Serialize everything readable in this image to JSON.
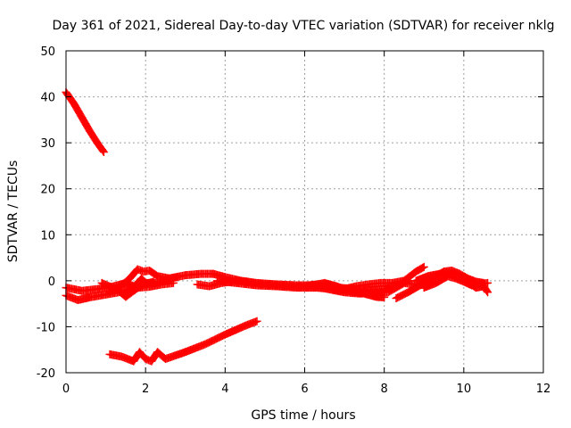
{
  "chart_data": {
    "type": "scatter",
    "title": "Day 361 of 2021, Sidereal Day-to-day VTEC variation (SDTVAR) for receiver nklg",
    "xlabel": "GPS time / hours",
    "ylabel": "SDTVAR / TECUs",
    "xlim": [
      0,
      12
    ],
    "ylim": [
      -20,
      50
    ],
    "x_ticks": [
      0,
      2,
      4,
      6,
      8,
      10,
      12
    ],
    "y_ticks": [
      -20,
      -10,
      0,
      10,
      20,
      30,
      40,
      50
    ],
    "x_tick_labels": [
      "0",
      "2",
      "4",
      "6",
      "8",
      "10",
      "12"
    ],
    "y_tick_labels": [
      "-20",
      "-10",
      "0",
      "10",
      "20",
      "30",
      "40",
      "50"
    ],
    "grid": true,
    "marker": "plus",
    "color": "#ff0000",
    "series": [
      {
        "name": "arc-1",
        "points": [
          [
            0.0,
            41.0
          ],
          [
            0.2,
            38.5
          ],
          [
            0.4,
            35.5
          ],
          [
            0.6,
            32.5
          ],
          [
            0.8,
            29.8
          ],
          [
            0.95,
            28.0
          ]
        ]
      },
      {
        "name": "arc-2",
        "points": [
          [
            0.0,
            -3.2
          ],
          [
            0.3,
            -4.2
          ],
          [
            0.6,
            -3.6
          ],
          [
            1.0,
            -3.0
          ],
          [
            1.4,
            -2.4
          ],
          [
            1.7,
            -1.5
          ],
          [
            1.9,
            0.5
          ],
          [
            2.0,
            -0.5
          ],
          [
            2.3,
            -0.5
          ],
          [
            2.6,
            0.5
          ],
          [
            3.0,
            1.2
          ],
          [
            3.4,
            1.5
          ],
          [
            3.7,
            1.5
          ]
        ]
      },
      {
        "name": "arc-3",
        "points": [
          [
            0.0,
            -1.5
          ],
          [
            0.4,
            -2.2
          ],
          [
            0.8,
            -1.8
          ],
          [
            1.2,
            -1.2
          ],
          [
            1.5,
            -0.5
          ],
          [
            1.8,
            -1.5
          ],
          [
            2.1,
            -1.3
          ],
          [
            2.4,
            -0.8
          ],
          [
            2.7,
            -0.5
          ]
        ]
      },
      {
        "name": "arc-4",
        "points": [
          [
            1.1,
            -2.5
          ],
          [
            1.4,
            -1.0
          ],
          [
            1.6,
            0.5
          ],
          [
            1.8,
            2.5
          ],
          [
            1.95,
            2.0
          ],
          [
            2.1,
            2.2
          ],
          [
            2.3,
            1.0
          ],
          [
            2.6,
            0.5
          ],
          [
            2.8,
            0.8
          ]
        ]
      },
      {
        "name": "arc-5",
        "points": [
          [
            0.9,
            -0.5
          ],
          [
            1.3,
            -2.0
          ],
          [
            1.5,
            -3.5
          ],
          [
            1.7,
            -2.2
          ],
          [
            1.9,
            -1.0
          ],
          [
            2.2,
            -0.2
          ]
        ]
      },
      {
        "name": "arc-6",
        "points": [
          [
            1.1,
            -16.0
          ],
          [
            1.4,
            -16.5
          ],
          [
            1.7,
            -17.5
          ],
          [
            1.85,
            -15.5
          ],
          [
            2.0,
            -17.0
          ],
          [
            2.15,
            -17.5
          ],
          [
            2.3,
            -15.5
          ],
          [
            2.5,
            -17.0
          ],
          [
            3.0,
            -15.5
          ],
          [
            3.5,
            -13.8
          ],
          [
            4.0,
            -11.7
          ],
          [
            4.5,
            -9.8
          ],
          [
            4.8,
            -8.8
          ]
        ]
      },
      {
        "name": "arc-7",
        "points": [
          [
            3.3,
            -0.8
          ],
          [
            3.6,
            -1.2
          ],
          [
            3.9,
            -0.5
          ],
          [
            4.3,
            0.0
          ],
          [
            4.8,
            -0.6
          ],
          [
            5.3,
            -1.0
          ],
          [
            5.8,
            -1.3
          ],
          [
            6.3,
            -1.3
          ],
          [
            6.7,
            -2.0
          ],
          [
            7.0,
            -2.5
          ],
          [
            7.4,
            -2.8
          ],
          [
            7.8,
            -2.5
          ],
          [
            8.1,
            -2.5
          ],
          [
            8.3,
            -1.5
          ],
          [
            8.5,
            -0.5
          ],
          [
            8.8,
            -0.8
          ],
          [
            9.1,
            -1.0
          ]
        ]
      },
      {
        "name": "arc-8",
        "points": [
          [
            3.7,
            1.5
          ],
          [
            4.0,
            0.8
          ],
          [
            4.4,
            0.0
          ],
          [
            4.8,
            -0.5
          ],
          [
            5.3,
            -0.8
          ],
          [
            5.8,
            -1.0
          ],
          [
            6.3,
            -1.0
          ],
          [
            6.8,
            -1.5
          ],
          [
            7.3,
            -1.8
          ],
          [
            7.7,
            -2.0
          ],
          [
            8.0,
            -1.8
          ],
          [
            8.3,
            -1.2
          ],
          [
            8.6,
            0.0
          ]
        ]
      },
      {
        "name": "arc-9",
        "points": [
          [
            3.8,
            0.0
          ],
          [
            4.3,
            -0.5
          ],
          [
            4.8,
            -1.0
          ],
          [
            5.3,
            -1.2
          ],
          [
            5.8,
            -1.5
          ],
          [
            6.3,
            -1.5
          ],
          [
            6.7,
            -1.8
          ],
          [
            7.1,
            -2.2
          ],
          [
            7.5,
            -2.8
          ],
          [
            7.8,
            -3.5
          ],
          [
            8.0,
            -3.6
          ]
        ]
      },
      {
        "name": "arc-10",
        "points": [
          [
            6.1,
            -1.0
          ],
          [
            6.3,
            -0.8
          ],
          [
            6.5,
            -0.5
          ],
          [
            6.8,
            -1.2
          ],
          [
            7.0,
            -1.8
          ],
          [
            7.3,
            -1.2
          ],
          [
            7.6,
            -0.8
          ],
          [
            7.9,
            -0.5
          ],
          [
            8.2,
            -0.5
          ],
          [
            8.5,
            0.0
          ],
          [
            8.8,
            2.0
          ],
          [
            9.0,
            3.0
          ]
        ]
      },
      {
        "name": "arc-11",
        "points": [
          [
            8.3,
            -3.8
          ],
          [
            8.6,
            -2.5
          ],
          [
            8.9,
            -1.0
          ],
          [
            9.2,
            0.5
          ],
          [
            9.5,
            2.0
          ],
          [
            9.7,
            2.2
          ],
          [
            9.9,
            1.5
          ],
          [
            10.1,
            0.5
          ],
          [
            10.3,
            -0.2
          ],
          [
            10.5,
            -0.5
          ]
        ]
      },
      {
        "name": "arc-12",
        "points": [
          [
            8.8,
            0.0
          ],
          [
            9.1,
            1.0
          ],
          [
            9.4,
            1.5
          ],
          [
            9.6,
            1.8
          ],
          [
            9.8,
            1.5
          ],
          [
            10.0,
            0.5
          ],
          [
            10.3,
            -1.5
          ],
          [
            10.5,
            -1.2
          ],
          [
            10.6,
            -2.5
          ]
        ]
      },
      {
        "name": "arc-13",
        "points": [
          [
            9.0,
            -1.5
          ],
          [
            9.3,
            -0.5
          ],
          [
            9.6,
            1.0
          ],
          [
            9.8,
            0.5
          ],
          [
            10.0,
            -0.2
          ],
          [
            10.2,
            -1.0
          ],
          [
            10.6,
            -0.5
          ]
        ]
      }
    ]
  }
}
